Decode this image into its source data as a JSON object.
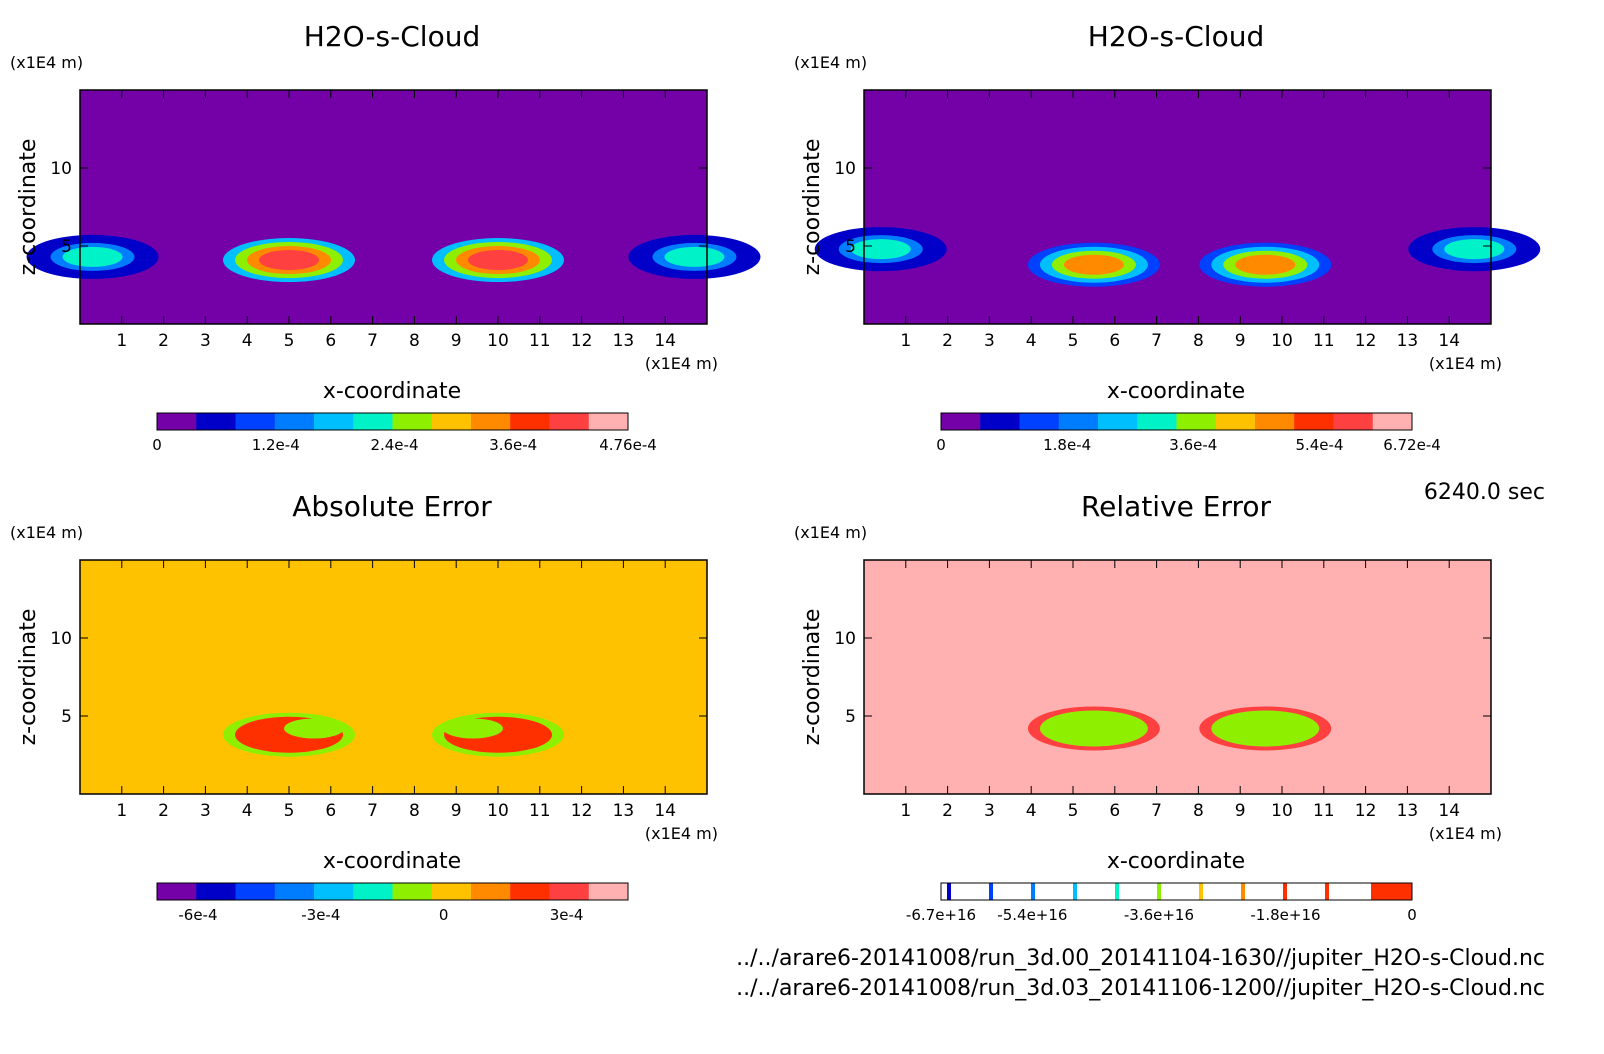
{
  "time_label": "6240.0 sec",
  "file_paths": [
    "../../arare6-20141008/run_3d.00_20141104-1630//jupiter_H2O-s-Cloud.nc",
    "../../arare6-20141008/run_3d.03_20141106-1200//jupiter_H2O-s-Cloud.nc"
  ],
  "palette": [
    "#7400a8",
    "#0000c8",
    "#0040ff",
    "#007dff",
    "#00bfff",
    "#00f2c8",
    "#8ef000",
    "#ffc200",
    "#ff8a00",
    "#ff3000",
    "#ff4040",
    "#ffb0b0"
  ],
  "chart_data": [
    {
      "type": "heatmap",
      "title": "H2O-s-Cloud",
      "xlabel": "x-coordinate",
      "ylabel": "z-coordinate",
      "x_unit": "(x1E4 m)",
      "y_unit": "(x1E4 m)",
      "x_ticks": [
        "1",
        "2",
        "3",
        "4",
        "5",
        "6",
        "7",
        "8",
        "9",
        "10",
        "11",
        "12",
        "13",
        "14"
      ],
      "y_ticks": [
        "5",
        "10"
      ],
      "background_value": 0,
      "colorbar": {
        "labels": [
          "0",
          "1.2e-4",
          "2.4e-4",
          "3.6e-4",
          "4.76e-4"
        ],
        "min": 0,
        "max": 0.000476
      },
      "features": [
        {
          "x": 0.3,
          "z": 4.3,
          "level": 5
        },
        {
          "x": 5.0,
          "z": 4.1,
          "level": 10
        },
        {
          "x": 10.0,
          "z": 4.1,
          "level": 10
        },
        {
          "x": 14.7,
          "z": 4.3,
          "level": 5
        }
      ]
    },
    {
      "type": "heatmap",
      "title": "H2O-s-Cloud",
      "xlabel": "x-coordinate",
      "ylabel": "z-coordinate",
      "x_unit": "(x1E4 m)",
      "y_unit": "(x1E4 m)",
      "x_ticks": [
        "1",
        "2",
        "3",
        "4",
        "5",
        "6",
        "7",
        "8",
        "9",
        "10",
        "11",
        "12",
        "13",
        "14"
      ],
      "y_ticks": [
        "5",
        "10"
      ],
      "background_value": 0,
      "colorbar": {
        "labels": [
          "0",
          "1.8e-4",
          "3.6e-4",
          "5.4e-4",
          "6.72e-4"
        ],
        "min": 0,
        "max": 0.000672
      },
      "features": [
        {
          "x": 0.4,
          "z": 4.8,
          "level": 5
        },
        {
          "x": 5.5,
          "z": 3.8,
          "level": 8
        },
        {
          "x": 9.6,
          "z": 3.8,
          "level": 8
        },
        {
          "x": 14.6,
          "z": 4.8,
          "level": 5
        }
      ]
    },
    {
      "type": "heatmap",
      "title": "Absolute Error",
      "xlabel": "x-coordinate",
      "ylabel": "z-coordinate",
      "x_unit": "(x1E4 m)",
      "y_unit": "(x1E4 m)",
      "x_ticks": [
        "1",
        "2",
        "3",
        "4",
        "5",
        "6",
        "7",
        "8",
        "9",
        "10",
        "11",
        "12",
        "13",
        "14"
      ],
      "y_ticks": [
        "5",
        "10"
      ],
      "background_value": 0,
      "colorbar": {
        "labels": [
          "-6e-4",
          "-3e-4",
          "0",
          "3e-4"
        ],
        "min": -0.0007,
        "max": 0.00045
      },
      "features": [
        {
          "x": 5.0,
          "z": 3.8,
          "level": 9
        },
        {
          "x": 10.0,
          "z": 3.8,
          "level": 9
        },
        {
          "x": 5.6,
          "z": 4.2,
          "level": 1
        },
        {
          "x": 9.4,
          "z": 4.2,
          "level": 1
        }
      ]
    },
    {
      "type": "heatmap",
      "title": "Relative Error",
      "xlabel": "x-coordinate",
      "ylabel": "z-coordinate",
      "x_unit": "(x1E4 m)",
      "y_unit": "(x1E4 m)",
      "x_ticks": [
        "1",
        "2",
        "3",
        "4",
        "5",
        "6",
        "7",
        "8",
        "9",
        "10",
        "11",
        "12",
        "13",
        "14"
      ],
      "y_ticks": [
        "5",
        "10"
      ],
      "background_value": 0,
      "colorbar": {
        "labels": [
          "-6.7e+16",
          "-5.4e+16",
          "-3.6e+16",
          "-1.8e+16",
          "0"
        ],
        "min": -6.7e+16,
        "max": 0
      },
      "features": [
        {
          "x": 5.5,
          "z": 4.2,
          "level": 6
        },
        {
          "x": 9.6,
          "z": 4.2,
          "level": 6
        }
      ]
    }
  ]
}
